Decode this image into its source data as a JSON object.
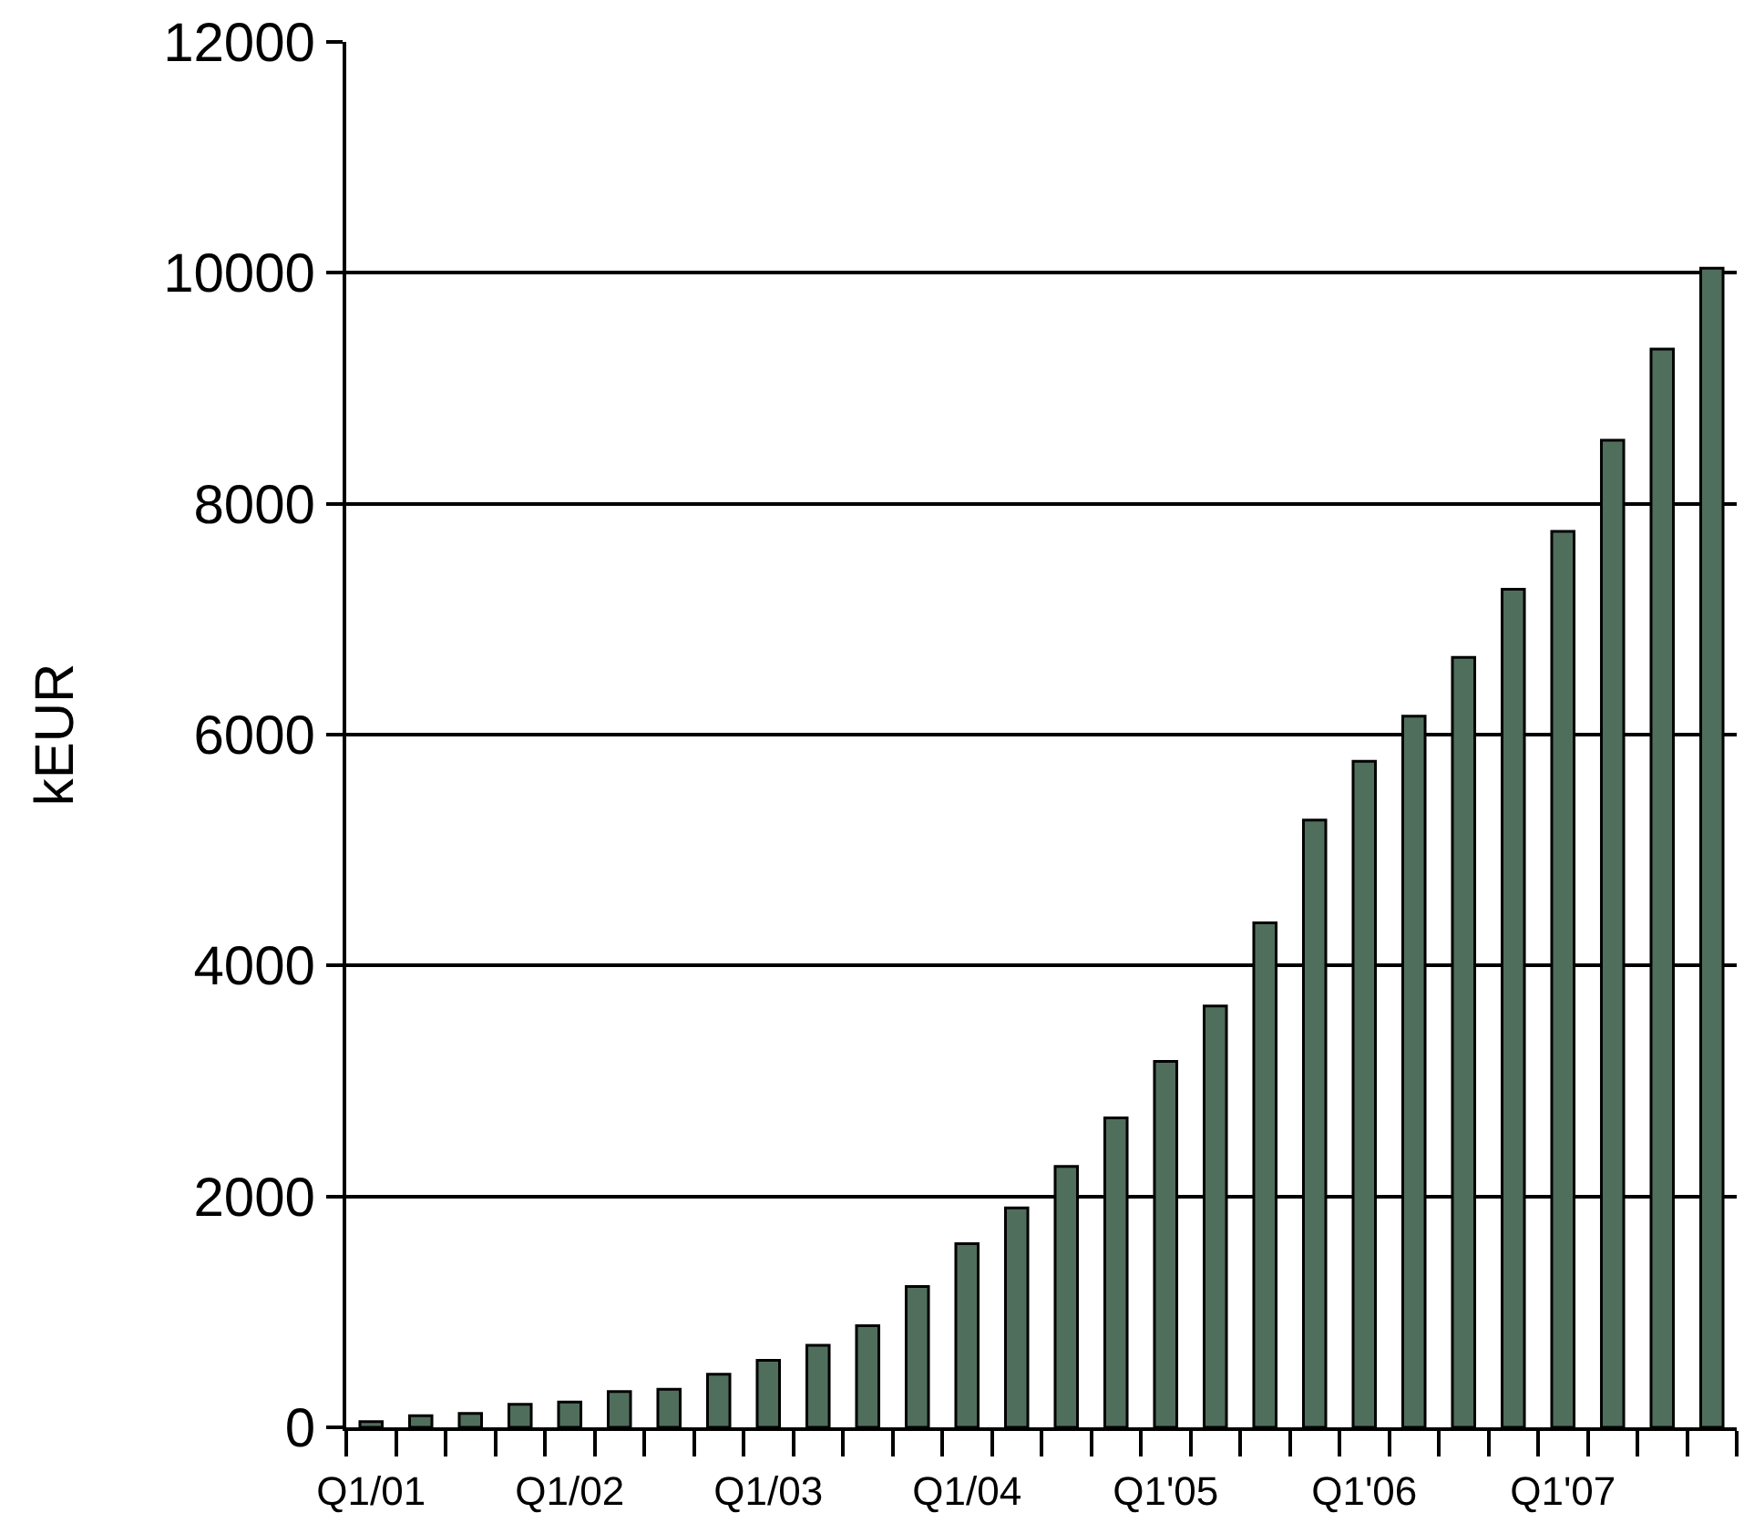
{
  "chart_data": {
    "type": "bar",
    "ylabel": "kEUR",
    "categories": [
      "Q1/01",
      null,
      null,
      null,
      "Q1/02",
      null,
      null,
      null,
      "Q1/03",
      null,
      null,
      null,
      "Q1/04",
      null,
      null,
      null,
      "Q1'05",
      null,
      null,
      null,
      "Q1'06",
      null,
      null,
      null,
      "Q1'07",
      null,
      null,
      null
    ],
    "values": [
      50,
      100,
      120,
      200,
      220,
      310,
      330,
      460,
      580,
      710,
      880,
      1220,
      1590,
      1900,
      2260,
      2680,
      3170,
      3650,
      4370,
      5260,
      5770,
      6160,
      6670,
      7260,
      7760,
      8550,
      9340,
      10040
    ],
    "color": "#506e5c",
    "ylim": [
      0,
      12000
    ],
    "yticks": [
      0,
      2000,
      4000,
      6000,
      8000,
      10000,
      12000
    ],
    "grid": "y"
  }
}
